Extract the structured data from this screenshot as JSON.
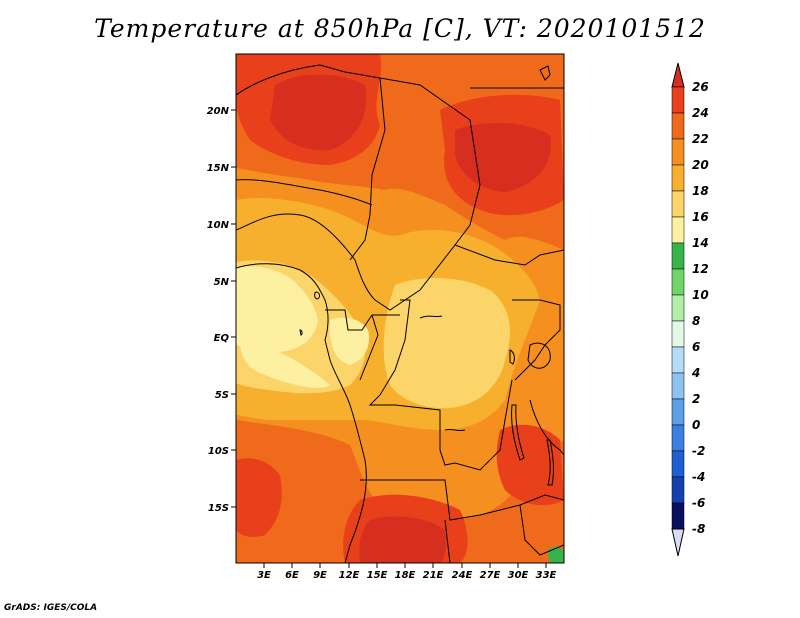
{
  "title": "Temperature at 850hPa [C], VT: 2020101512",
  "credit": "GrADS: IGES/COLA",
  "map": {
    "lat_labels": [
      "20N",
      "15N",
      "10N",
      "5N",
      "EQ",
      "5S",
      "10S",
      "15S"
    ],
    "lon_labels": [
      "3E",
      "6E",
      "9E",
      "12E",
      "15E",
      "18E",
      "21E",
      "24E",
      "27E",
      "30E",
      "33E"
    ],
    "region": "Central Africa",
    "variable": "Temperature at 850hPa",
    "units": "C"
  },
  "colorbar": {
    "labels": [
      "26",
      "24",
      "22",
      "20",
      "18",
      "16",
      "14",
      "12",
      "10",
      "8",
      "6",
      "4",
      "2",
      "0",
      "-2",
      "-4",
      "-6",
      "-8"
    ],
    "colors": {
      "over": "#d72f1f",
      "b24_26": "#e8401a",
      "b22_24": "#f06a1c",
      "b20_22": "#f58f1f",
      "b18_20": "#f7b02e",
      "b16_18": "#fbd46a",
      "b14_16": "#fdf0a0",
      "b12_14": "#37b34a",
      "b10_12": "#6fd46a",
      "b8_10": "#b3eea8",
      "b6_8": "#e3f8e6",
      "b4_6": "#b5dcf6",
      "b2_4": "#8cc3f0",
      "b0_2": "#5e9fe8",
      "bm2_0": "#3b7fe0",
      "bm4_m2": "#205fd2",
      "bm6_m4": "#1342b0",
      "bm8_m6": "#0a2a8a",
      "under": "#0a0f60",
      "under_arrow": "#d9dcf8"
    }
  }
}
